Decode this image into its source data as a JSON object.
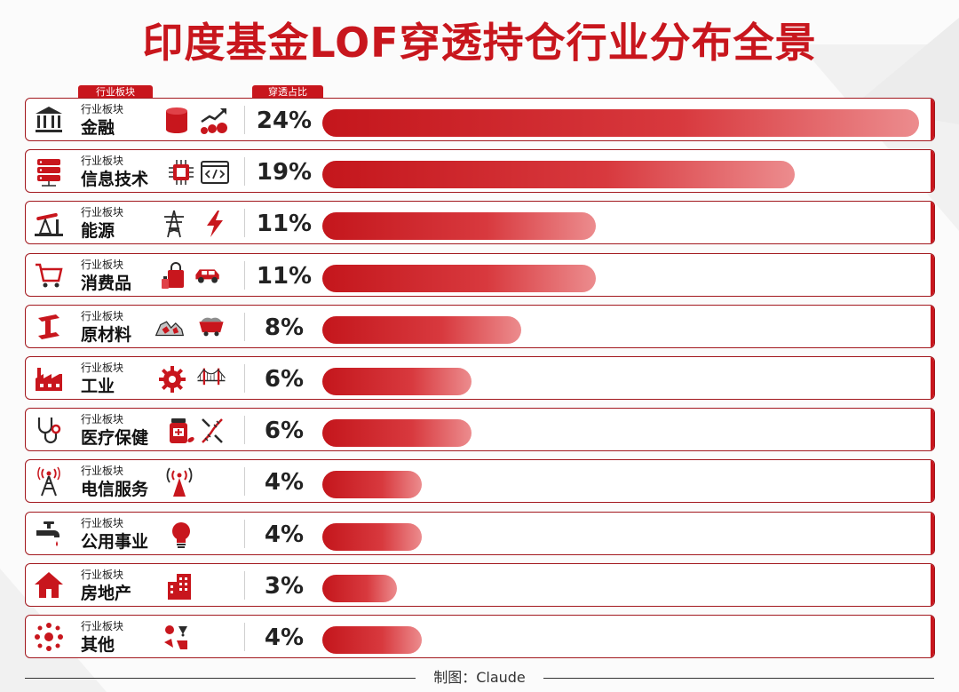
{
  "title": "印度基金LOF穿透持仓行业分布全景",
  "header_pills": {
    "sector": "行业板块",
    "share": "穿透占比"
  },
  "row_small_label": "行业板块",
  "credit": "制图：Claude",
  "colors": {
    "accent": "#c8161d",
    "bar_light": "#ec8c8e",
    "border": "#a2181e"
  },
  "chart_data": {
    "type": "bar",
    "orientation": "horizontal",
    "title": "印度基金LOF穿透持仓行业分布全景",
    "categories": [
      "金融",
      "信息技术",
      "能源",
      "消费品",
      "原材料",
      "工业",
      "医疗保健",
      "电信服务",
      "公用事业",
      "房地产",
      "其他"
    ],
    "values": [
      24,
      19,
      11,
      11,
      8,
      6,
      6,
      4,
      4,
      3,
      4
    ],
    "value_labels": [
      "24%",
      "19%",
      "11%",
      "11%",
      "8%",
      "6%",
      "6%",
      "4%",
      "4%",
      "3%",
      "4%"
    ],
    "xlim": [
      0,
      24
    ],
    "unit": "%"
  },
  "rows": [
    {
      "name": "金融",
      "pct": "24%",
      "value": 24,
      "icon": "bank-icon",
      "deco": [
        "coin-stack-icon",
        "growth-chart-icon"
      ]
    },
    {
      "name": "信息技术",
      "pct": "19%",
      "value": 19,
      "icon": "server-icon",
      "deco": [
        "chip-icon",
        "code-window-icon"
      ]
    },
    {
      "name": "能源",
      "pct": "11%",
      "value": 11,
      "icon": "oil-pump-icon",
      "deco": [
        "power-tower-icon",
        "lightning-icon"
      ]
    },
    {
      "name": "消费品",
      "pct": "11%",
      "value": 11,
      "icon": "cart-icon",
      "deco": [
        "shopping-bag-icon",
        "car-icon"
      ]
    },
    {
      "name": "原材料",
      "pct": "8%",
      "value": 8,
      "icon": "steel-beam-icon",
      "deco": [
        "ore-rocks-icon",
        "mine-cart-icon"
      ]
    },
    {
      "name": "工业",
      "pct": "6%",
      "value": 6,
      "icon": "factory-icon",
      "deco": [
        "gear-icon",
        "bridge-icon"
      ]
    },
    {
      "name": "医疗保健",
      "pct": "6%",
      "value": 6,
      "icon": "stethoscope-icon",
      "deco": [
        "medicine-bottle-icon",
        "dna-icon"
      ]
    },
    {
      "name": "电信服务",
      "pct": "4%",
      "value": 4,
      "icon": "antenna-icon",
      "deco": [
        "signal-tower-icon"
      ]
    },
    {
      "name": "公用事业",
      "pct": "4%",
      "value": 4,
      "icon": "faucet-icon",
      "deco": [
        "light-bulb-icon"
      ]
    },
    {
      "name": "房地产",
      "pct": "3%",
      "value": 3,
      "icon": "house-icon",
      "deco": [
        "building-icon"
      ]
    },
    {
      "name": "其他",
      "pct": "4%",
      "value": 4,
      "icon": "dots-cluster-icon",
      "deco": [
        "misc-items-icon"
      ]
    }
  ]
}
